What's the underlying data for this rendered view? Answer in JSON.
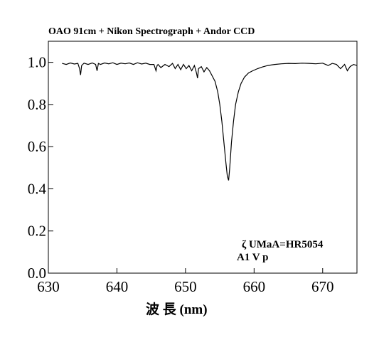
{
  "chart_data": {
    "type": "line",
    "title": "OAO 91cm + Nikon Spectrograph + Andor CCD",
    "xlabel": "波 長 (nm)",
    "ylabel": "",
    "xlim": [
      630,
      675
    ],
    "ylim": [
      0.0,
      1.1
    ],
    "x_ticks": [
      630,
      640,
      650,
      660,
      670
    ],
    "y_ticks": [
      0.0,
      0.2,
      0.4,
      0.6,
      0.8,
      1.0
    ],
    "x_tick_labels": [
      "630",
      "640",
      "650",
      "660",
      "670"
    ],
    "y_tick_labels": [
      "0.0",
      "0.2",
      "0.4",
      "0.6",
      "0.8",
      "1.0"
    ],
    "annotations": [
      "ζ UMaA=HR5054",
      "A1 V p"
    ],
    "grid": false,
    "series": [
      {
        "x": [
          632.0,
          632.6,
          633.2,
          633.8,
          634.3,
          634.55,
          634.7,
          634.85,
          635.2,
          635.8,
          636.4,
          636.9,
          637.1,
          637.3,
          637.6,
          638.2,
          638.8,
          639.4,
          640.0,
          640.6,
          641.2,
          641.8,
          642.4,
          643.0,
          643.6,
          644.2,
          644.8,
          645.4,
          645.7,
          645.85,
          646.0,
          646.4,
          647.0,
          647.6,
          648.1,
          648.5,
          648.9,
          649.3,
          649.7,
          650.1,
          650.5,
          650.9,
          651.3,
          651.6,
          651.75,
          651.9,
          652.3,
          652.7,
          653.1,
          653.5,
          653.9,
          654.3,
          654.7,
          655.0,
          655.3,
          655.6,
          655.9,
          656.1,
          656.28,
          656.45,
          656.7,
          657.0,
          657.3,
          657.7,
          658.1,
          658.6,
          659.2,
          659.8,
          660.5,
          661.2,
          662.0,
          663.0,
          664.0,
          665.0,
          666.0,
          667.0,
          668.0,
          669.0,
          670.0,
          670.8,
          671.4,
          672.0,
          672.6,
          673.2,
          673.6,
          674.0,
          674.5,
          675.0
        ],
        "y": [
          0.995,
          0.99,
          0.997,
          0.992,
          0.995,
          0.97,
          0.94,
          0.985,
          0.996,
          0.99,
          0.997,
          0.99,
          0.96,
          0.995,
          0.99,
          0.997,
          0.993,
          0.998,
          0.99,
          0.996,
          0.993,
          0.997,
          0.99,
          0.998,
          0.992,
          0.996,
          0.99,
          0.99,
          0.96,
          0.985,
          0.99,
          0.975,
          0.99,
          0.98,
          0.995,
          0.97,
          0.99,
          0.965,
          0.99,
          0.97,
          0.985,
          0.96,
          0.985,
          0.95,
          0.925,
          0.97,
          0.98,
          0.955,
          0.975,
          0.96,
          0.935,
          0.91,
          0.86,
          0.8,
          0.72,
          0.62,
          0.52,
          0.46,
          0.44,
          0.5,
          0.62,
          0.72,
          0.8,
          0.86,
          0.9,
          0.93,
          0.95,
          0.96,
          0.97,
          0.978,
          0.985,
          0.99,
          0.993,
          0.995,
          0.994,
          0.996,
          0.995,
          0.993,
          0.996,
          0.985,
          0.995,
          0.99,
          0.97,
          0.99,
          0.96,
          0.98,
          0.99,
          0.985
        ]
      }
    ]
  }
}
